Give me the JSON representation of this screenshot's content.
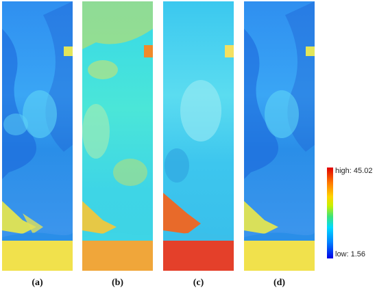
{
  "panels": [
    {
      "label": "(a)",
      "scheme": "cyan-blue",
      "sea_level": "yellow"
    },
    {
      "label": "(b)",
      "scheme": "cyan-yellow",
      "sea_level": "yellow-orange"
    },
    {
      "label": "(c)",
      "scheme": "cyan",
      "sea_level": "red-orange"
    },
    {
      "label": "(d)",
      "scheme": "cyan-blue",
      "sea_level": "yellow"
    }
  ],
  "colorbar": {
    "high_label": "high: 45.02",
    "low_label": "low: 1.56",
    "high_color": "#e00000",
    "low_color": "#0000e6"
  }
}
